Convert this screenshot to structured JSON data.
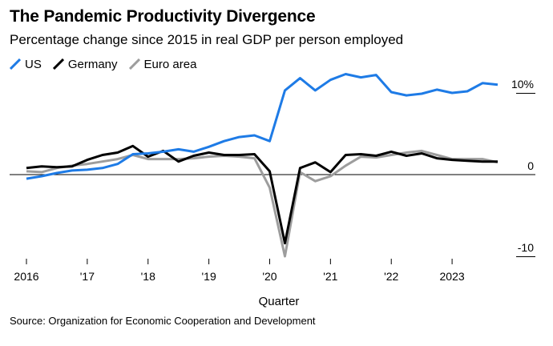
{
  "chart_data": {
    "type": "line",
    "title": "The Pandemic Productivity Divergence",
    "subtitle": "Percentage change since 2015 in real GDP per person employed",
    "xlabel": "Quarter",
    "ylabel": "",
    "source": "Source: Organization for Economic Cooperation and Development",
    "xlim": [
      2016.0,
      2023.75
    ],
    "ylim": [
      -10.5,
      11
    ],
    "y_ticks": [
      {
        "value": 10,
        "label": "10%"
      },
      {
        "value": 0,
        "label": "0"
      },
      {
        "value": -10,
        "label": "-10"
      }
    ],
    "x_ticks": [
      {
        "value": 2016,
        "label": "2016"
      },
      {
        "value": 2017,
        "label": "'17"
      },
      {
        "value": 2018,
        "label": "'18"
      },
      {
        "value": 2019,
        "label": "'19"
      },
      {
        "value": 2020,
        "label": "'20"
      },
      {
        "value": 2021,
        "label": "'21"
      },
      {
        "value": 2022,
        "label": "'22"
      },
      {
        "value": 2023,
        "label": "2023"
      }
    ],
    "legend_position": "top-left",
    "grid": false,
    "x": [
      "2016Q1",
      "2016Q2",
      "2016Q3",
      "2016Q4",
      "2017Q1",
      "2017Q2",
      "2017Q3",
      "2017Q4",
      "2018Q1",
      "2018Q2",
      "2018Q3",
      "2018Q4",
      "2019Q1",
      "2019Q2",
      "2019Q3",
      "2019Q4",
      "2020Q1",
      "2020Q2",
      "2020Q3",
      "2020Q4",
      "2021Q1",
      "2021Q2",
      "2021Q3",
      "2021Q4",
      "2022Q1",
      "2022Q2",
      "2022Q3",
      "2022Q4",
      "2023Q1",
      "2023Q2",
      "2023Q3",
      "2023Q4"
    ],
    "series": [
      {
        "name": "US",
        "color": "#1e7be6",
        "values": [
          -0.5,
          -0.2,
          0.2,
          0.5,
          0.6,
          0.8,
          1.3,
          2.5,
          2.6,
          2.8,
          3.1,
          2.8,
          3.4,
          4.1,
          4.6,
          4.8,
          4.1,
          10.3,
          11.8,
          10.3,
          11.6,
          12.3,
          11.9,
          12.2,
          10.1,
          9.7,
          9.9,
          10.4,
          10.0,
          10.2,
          11.2,
          11.0
        ]
      },
      {
        "name": "Germany",
        "color": "#000000",
        "values": [
          0.8,
          1.0,
          0.9,
          1.0,
          1.8,
          2.4,
          2.7,
          3.5,
          2.2,
          2.9,
          1.6,
          2.3,
          2.7,
          2.4,
          2.4,
          2.5,
          0.4,
          -8.4,
          0.8,
          1.5,
          0.3,
          2.4,
          2.5,
          2.3,
          2.8,
          2.3,
          2.6,
          2.0,
          1.8,
          1.7,
          1.6,
          1.6
        ]
      },
      {
        "name": "Euro area",
        "color": "#9d9d9d",
        "values": [
          0.4,
          0.3,
          0.8,
          1.1,
          1.3,
          1.6,
          1.9,
          2.4,
          1.9,
          1.9,
          1.9,
          2.0,
          2.2,
          2.3,
          2.2,
          2.0,
          -1.6,
          -10.0,
          0.3,
          -0.8,
          -0.2,
          1.1,
          2.2,
          2.1,
          2.4,
          2.7,
          2.9,
          2.4,
          1.9,
          1.9,
          1.9,
          1.5
        ]
      }
    ]
  }
}
